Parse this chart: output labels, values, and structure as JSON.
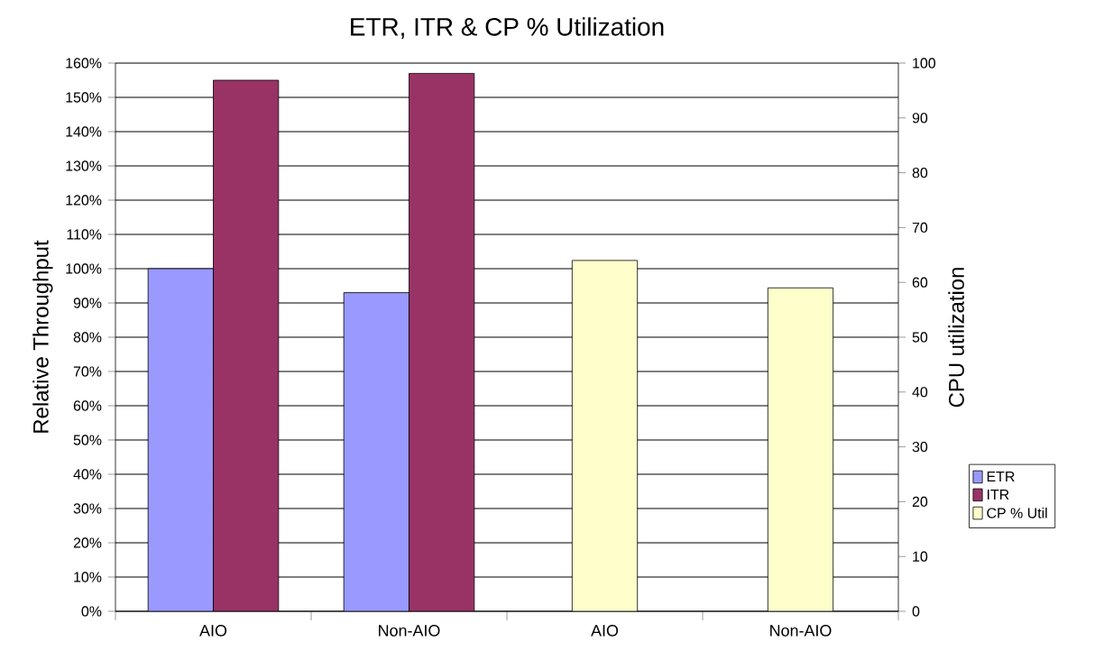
{
  "chart_data": {
    "type": "bar",
    "title": "ETR, ITR & CP % Utilization",
    "ylabel": "Relative Throughput",
    "y2label": "CPU utilization",
    "categories": [
      "AIO",
      "Non-AIO",
      "AIO",
      "Non-AIO"
    ],
    "series": [
      {
        "name": "ETR",
        "color": "#9999ff",
        "values": [
          100,
          93,
          null,
          null
        ]
      },
      {
        "name": "ITR",
        "color": "#993366",
        "values": [
          155,
          157,
          null,
          null
        ]
      },
      {
        "name": "CP % Util",
        "color": "#ffffcc",
        "axis": "y2",
        "values": [
          null,
          null,
          64,
          59
        ]
      }
    ],
    "ylim": [
      0,
      160
    ],
    "yticks": [
      {
        "value": 0,
        "label": "0%"
      },
      {
        "value": 10,
        "label": "10%"
      },
      {
        "value": 20,
        "label": "20%"
      },
      {
        "value": 30,
        "label": "30%"
      },
      {
        "value": 40,
        "label": "40%"
      },
      {
        "value": 50,
        "label": "50%"
      },
      {
        "value": 60,
        "label": "60%"
      },
      {
        "value": 70,
        "label": "70%"
      },
      {
        "value": 80,
        "label": "80%"
      },
      {
        "value": 90,
        "label": "90%"
      },
      {
        "value": 100,
        "label": "100%"
      },
      {
        "value": 110,
        "label": "110%"
      },
      {
        "value": 120,
        "label": "120%"
      },
      {
        "value": 130,
        "label": "130%"
      },
      {
        "value": 140,
        "label": "140%"
      },
      {
        "value": 150,
        "label": "150%"
      },
      {
        "value": 160,
        "label": "160%"
      }
    ],
    "y2lim": [
      0,
      100
    ],
    "y2ticks": [
      0,
      10,
      20,
      30,
      40,
      50,
      60,
      70,
      80,
      90,
      100
    ],
    "grid": "y",
    "legend": "right"
  }
}
